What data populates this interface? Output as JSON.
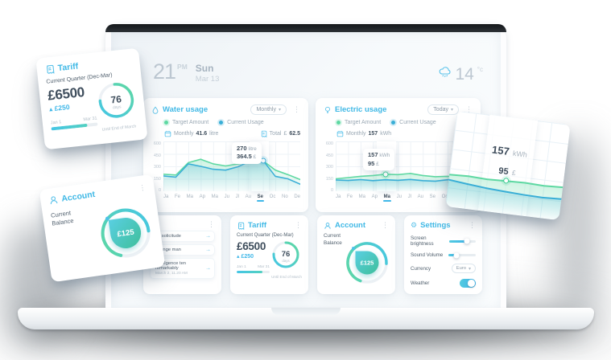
{
  "header": {
    "time": "21",
    "meridiem": "PM",
    "day": "Sun",
    "date": "Mar 13",
    "temperature": "14",
    "temperature_unit": "°c"
  },
  "charts": {
    "water": {
      "title": "Water usage",
      "range_selector": "Monthly",
      "legend": [
        "Target Amount",
        "Current Usage"
      ],
      "monthly_label": "Monthly",
      "monthly_value": "41.6",
      "monthly_unit": "litre",
      "total_label": "Total",
      "total_currency": "£",
      "total_value": "62.5",
      "y_ticks": [
        "600",
        "450",
        "300",
        "150",
        "0"
      ],
      "categories": [
        "Ja",
        "Fe",
        "Ma",
        "Ap",
        "Ma",
        "Ju",
        "Jl",
        "Au",
        "Se",
        "Oc",
        "No",
        "De"
      ],
      "active_index": 8,
      "ymax": 600,
      "series": [
        {
          "name": "Target Amount",
          "color": "#5ed8a2",
          "values": [
            205,
            195,
            345,
            385,
            330,
            305,
            330,
            355,
            368,
            255,
            200,
            140
          ]
        },
        {
          "name": "Current Usage",
          "color": "#39aed6",
          "values": [
            185,
            170,
            330,
            300,
            265,
            255,
            295,
            365,
            372,
            180,
            150,
            85
          ]
        }
      ],
      "tooltip": {
        "value": "270",
        "unit": "litre",
        "cost": "364.5",
        "currency": "£"
      }
    },
    "electric": {
      "title": "Electric usage",
      "range_selector": "Today",
      "legend": [
        "Target Amount",
        "Current Usage"
      ],
      "monthly_label": "Monthly",
      "monthly_value": "157",
      "monthly_unit": "kWh",
      "y_ticks": [
        "600",
        "450",
        "300",
        "150",
        "0"
      ],
      "categories": [
        "Ja",
        "Fe",
        "Ma",
        "Ap",
        "Ma",
        "Ju",
        "Jl",
        "Au",
        "Se",
        "Oc",
        "No",
        "De"
      ],
      "active_index": 4,
      "ymax": 600,
      "series": [
        {
          "name": "Target Amount",
          "color": "#5ed8a2",
          "values": [
            150,
            165,
            180,
            190,
            205,
            200,
            215,
            190,
            175,
            180,
            165,
            155
          ]
        },
        {
          "name": "Current Usage",
          "color": "#39aed6",
          "values": [
            135,
            130,
            140,
            128,
            138,
            132,
            142,
            128,
            122,
            138,
            148,
            128
          ]
        }
      ],
      "tooltip": {
        "value": "157",
        "unit": "kWh",
        "cost": "95",
        "currency": "£"
      }
    }
  },
  "chart_data": [
    {
      "type": "area",
      "title": "Water usage",
      "x": [
        "Ja",
        "Fe",
        "Ma",
        "Ap",
        "Ma",
        "Ju",
        "Jl",
        "Au",
        "Se",
        "Oc",
        "No",
        "De"
      ],
      "ylim": [
        0,
        600
      ],
      "series": [
        {
          "name": "Target Amount",
          "values": [
            205,
            195,
            345,
            385,
            330,
            305,
            330,
            355,
            368,
            255,
            200,
            140
          ]
        },
        {
          "name": "Current Usage",
          "values": [
            185,
            170,
            330,
            300,
            265,
            255,
            295,
            365,
            372,
            180,
            150,
            85
          ]
        }
      ],
      "annotations": [
        "270 litre",
        "364.5 £"
      ]
    },
    {
      "type": "line",
      "title": "Electric usage",
      "x": [
        "Ja",
        "Fe",
        "Ma",
        "Ap",
        "Ma",
        "Ju",
        "Jl",
        "Au",
        "Se",
        "Oc",
        "No",
        "De"
      ],
      "ylim": [
        0,
        600
      ],
      "series": [
        {
          "name": "Target Amount",
          "values": [
            150,
            165,
            180,
            190,
            205,
            200,
            215,
            190,
            175,
            180,
            165,
            155
          ]
        },
        {
          "name": "Current Usage",
          "values": [
            135,
            130,
            140,
            128,
            138,
            132,
            142,
            128,
            122,
            138,
            148,
            128
          ]
        }
      ],
      "annotations": [
        "157 kWh",
        "95 £"
      ]
    }
  ],
  "notifications": {
    "items": [
      {
        "title": "se solicitude",
        "meta": ""
      },
      {
        "title": "change man",
        "meta": ""
      },
      {
        "title": "Indulgence ten remarkably",
        "meta": "March 2, 11.20 AM"
      }
    ]
  },
  "tariff": {
    "title": "Tariff",
    "period": "Current Quarter (Dec-Mar)",
    "amount": "£6500",
    "delta_prefix": "▴",
    "delta": "£250",
    "days_value": "76",
    "days_unit": "days",
    "range_start": "Jan 1",
    "range_end": "Mar 31",
    "caption": "Until End of March",
    "progress_pct": 78,
    "gauge_pct": 76
  },
  "account": {
    "title": "Account",
    "balance_label": "Current Balance",
    "balance_value": "£125",
    "gauge_pct": 70
  },
  "settings": {
    "title": "Settings",
    "brightness_label": "Screen brightness",
    "brightness_pct": 66,
    "volume_label": "Sound Volume",
    "volume_pct": 28,
    "currency_label": "Currency",
    "currency_value": "Euro",
    "weather_label": "Weather",
    "weather_on": true
  },
  "float_chart": {
    "ymax": 600,
    "series": [
      {
        "name": "Target Amount",
        "color": "#5ed8a2",
        "values": [
          200,
          204,
          199,
          203,
          206,
          202,
          207
        ]
      },
      {
        "name": "Current Usage",
        "color": "#39aed6",
        "values": [
          168,
          155,
          144,
          137,
          131,
          128,
          133
        ]
      }
    ]
  },
  "colors": {
    "accent": "#41b9e6",
    "green": "#5ed8a2",
    "blue": "#39aed6",
    "dark": "#3e4d5c"
  }
}
